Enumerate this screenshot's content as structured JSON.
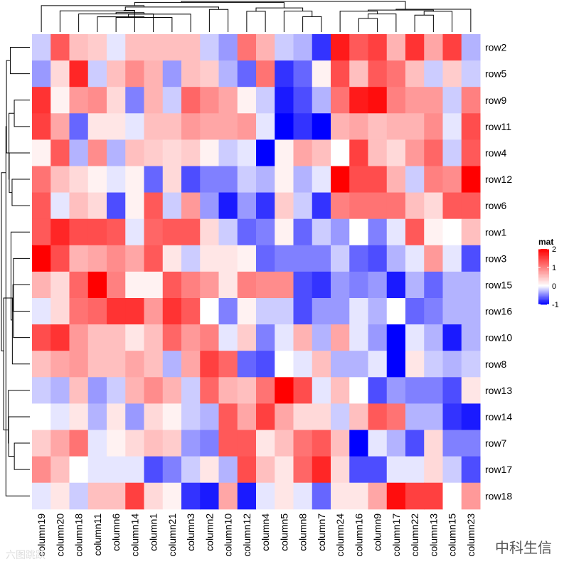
{
  "chart_data": {
    "type": "heatmap",
    "rows": [
      "row2",
      "row5",
      "row9",
      "row11",
      "row4",
      "row12",
      "row6",
      "row1",
      "row3",
      "row15",
      "row16",
      "row10",
      "row8",
      "row13",
      "row14",
      "row7",
      "row17",
      "row18"
    ],
    "columns": [
      "column19",
      "column20",
      "column18",
      "column11",
      "column6",
      "column14",
      "column1",
      "column21",
      "column3",
      "column2",
      "column10",
      "column12",
      "column4",
      "column5",
      "column8",
      "column7",
      "column24",
      "column16",
      "column9",
      "column17",
      "column22",
      "column13",
      "column15",
      "column23"
    ],
    "values": [
      [
        -0.2,
        1.3,
        0.5,
        0.4,
        -0.1,
        0.5,
        0.5,
        0.5,
        0.5,
        -0.2,
        -0.4,
        1.1,
        0.6,
        -0.2,
        -0.3,
        -0.8,
        1.8,
        1.3,
        1.5,
        0.6,
        1.6,
        0.7,
        1.5,
        -0.3
      ],
      [
        -0.4,
        0.3,
        1.7,
        -0.2,
        0.5,
        0.9,
        0.6,
        -0.4,
        0.5,
        0.4,
        -0.3,
        -0.6,
        1.1,
        -0.8,
        -0.6,
        0.1,
        1.4,
        0.5,
        1.3,
        1.1,
        0.5,
        -0.2,
        0.4,
        -0.2
      ],
      [
        1.6,
        0.1,
        0.8,
        0.9,
        0.3,
        -0.5,
        0.6,
        -0.2,
        1.2,
        0.9,
        0.7,
        0.1,
        -0.2,
        -0.9,
        -0.7,
        -0.3,
        1.1,
        1.8,
        1.9,
        1.0,
        0.8,
        0.8,
        -0.2,
        1.0
      ],
      [
        1.5,
        0.7,
        -0.6,
        0.2,
        0.2,
        -0.1,
        0.5,
        0.5,
        0.8,
        0.7,
        0.7,
        0.8,
        -0.1,
        -1.0,
        -0.8,
        -1.0,
        0.6,
        0.7,
        0.5,
        0.6,
        0.6,
        0.9,
        -0.1,
        1.4
      ],
      [
        0.1,
        1.3,
        -0.3,
        0.9,
        -0.3,
        0.5,
        0.4,
        0.3,
        0.4,
        0.1,
        -0.2,
        -0.1,
        -1.0,
        0.1,
        0.7,
        0.5,
        0.0,
        1.5,
        0.5,
        0.3,
        0.8,
        1.2,
        -0.2,
        1.3
      ],
      [
        1.1,
        0.5,
        0.3,
        0.1,
        -0.1,
        0.1,
        -0.6,
        0.3,
        -0.7,
        -0.5,
        -0.5,
        -0.2,
        -0.3,
        0.1,
        -0.3,
        -0.1,
        2.0,
        1.4,
        1.4,
        0.6,
        -0.2,
        1.0,
        0.9,
        2.0
      ],
      [
        1.3,
        -0.1,
        0.5,
        0.3,
        -0.7,
        0.1,
        1.3,
        -0.2,
        0.8,
        -0.4,
        -0.9,
        -0.4,
        -0.8,
        0.4,
        -0.2,
        -0.8,
        1.0,
        1.1,
        1.1,
        1.1,
        0.5,
        0.3,
        1.3,
        1.3
      ],
      [
        1.3,
        1.7,
        1.4,
        1.4,
        1.3,
        -0.1,
        1.2,
        1.3,
        1.3,
        0.3,
        -0.2,
        -0.6,
        -0.5,
        0.1,
        -0.6,
        -0.2,
        -0.4,
        0.0,
        -0.5,
        -0.1,
        1.3,
        0.1,
        0.0,
        0.5
      ],
      [
        2.0,
        1.4,
        0.6,
        0.7,
        0.9,
        0.7,
        1.3,
        0.2,
        -0.2,
        0.2,
        0.2,
        0.1,
        -0.6,
        -0.5,
        -0.5,
        -0.5,
        -0.2,
        -0.6,
        -0.7,
        -0.3,
        -0.1,
        0.8,
        -0.1,
        -0.7
      ],
      [
        0.6,
        0.3,
        1.2,
        2.0,
        1.0,
        0.1,
        0.1,
        1.3,
        1.0,
        0.8,
        0.2,
        1.0,
        0.9,
        0.9,
        -0.7,
        -0.8,
        -0.4,
        -0.5,
        -0.4,
        -0.9,
        -0.3,
        -0.6,
        -0.3,
        -0.3
      ],
      [
        -0.1,
        0.3,
        1.1,
        1.2,
        1.6,
        1.6,
        0.8,
        1.6,
        1.3,
        0.0,
        -0.5,
        0.1,
        -0.2,
        -0.2,
        -0.7,
        -0.4,
        -0.4,
        -0.1,
        -0.3,
        0.0,
        -0.6,
        -0.5,
        -0.3,
        -0.3
      ],
      [
        1.4,
        1.6,
        0.8,
        0.5,
        0.5,
        0.2,
        0.5,
        1.2,
        0.8,
        1.0,
        -0.1,
        0.4,
        -0.5,
        -0.1,
        0.6,
        -0.3,
        0.7,
        -0.1,
        -0.4,
        -1.0,
        -0.1,
        -0.3,
        -0.9,
        -0.3
      ],
      [
        0.5,
        0.7,
        0.8,
        0.5,
        0.5,
        0.7,
        0.5,
        -0.3,
        0.7,
        1.5,
        1.2,
        -0.6,
        -0.7,
        0.0,
        -0.1,
        0.5,
        -0.3,
        -0.3,
        -0.1,
        -1.0,
        0.2,
        -0.2,
        -0.3,
        -0.2
      ],
      [
        -0.2,
        -0.3,
        0.5,
        -0.4,
        -0.2,
        0.6,
        0.9,
        0.6,
        -0.2,
        1.2,
        0.6,
        0.5,
        1.1,
        2.0,
        1.4,
        -0.1,
        0.5,
        0.0,
        -0.7,
        -0.4,
        -0.5,
        -0.5,
        -0.7,
        0.2
      ],
      [
        0.0,
        -0.1,
        0.2,
        -0.3,
        0.2,
        -0.4,
        0.3,
        0.1,
        -0.2,
        -0.3,
        1.3,
        0.7,
        1.5,
        0.7,
        0.3,
        0.3,
        -0.2,
        0.5,
        1.3,
        1.1,
        -0.3,
        -0.3,
        -0.8,
        -0.9
      ],
      [
        0.4,
        0.7,
        1.1,
        -0.1,
        0.1,
        0.3,
        0.5,
        0.4,
        -0.4,
        -0.5,
        1.3,
        1.3,
        0.2,
        0.5,
        1.1,
        1.3,
        0.5,
        -1.0,
        -0.1,
        -0.3,
        -0.7,
        0.3,
        -0.5,
        -0.5
      ],
      [
        0.9,
        0.5,
        0.0,
        -0.1,
        -0.1,
        -0.1,
        -0.7,
        -0.5,
        -0.2,
        0.2,
        -0.3,
        1.4,
        0.5,
        0.2,
        1.2,
        1.7,
        0.3,
        -0.7,
        -0.7,
        -0.1,
        -0.1,
        0.3,
        -0.2,
        -0.7
      ],
      [
        -0.1,
        0.2,
        -0.2,
        0.5,
        0.5,
        1.5,
        0.3,
        0.1,
        -0.8,
        -0.9,
        0.7,
        -0.9,
        -0.1,
        0.2,
        -0.1,
        -0.6,
        0.2,
        0.2,
        0.7,
        1.9,
        1.5,
        1.5,
        0.0,
        0.8
      ]
    ],
    "legend": {
      "title": "mat",
      "ticks": [
        2,
        1,
        0,
        -1
      ],
      "range": [
        -1,
        2
      ]
    },
    "colors": {
      "low": "#0000ff",
      "mid": "#ffffff",
      "high": "#ff0000"
    },
    "row_dendrogram": true,
    "column_dendrogram": true
  },
  "watermarks": {
    "right": "中科生信",
    "left": "六图跳跃"
  }
}
